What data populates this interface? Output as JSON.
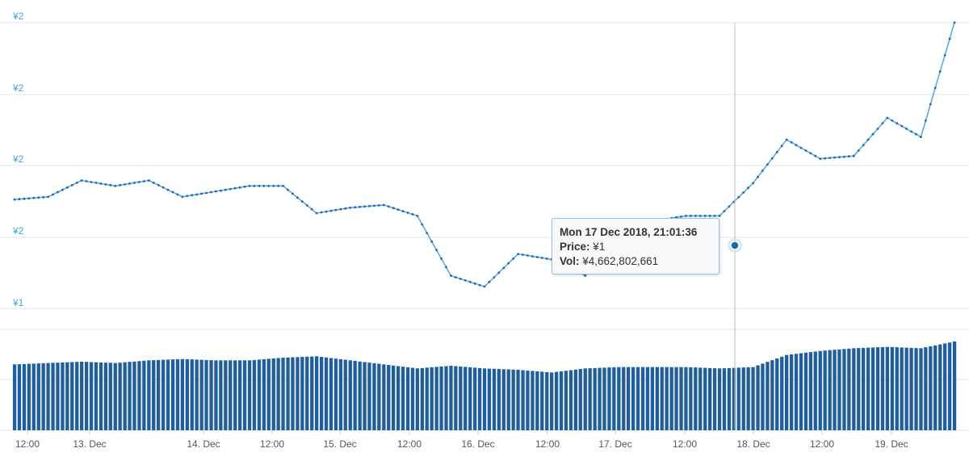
{
  "chart_data": {
    "type": "line",
    "title": "",
    "x": [
      "12 Dec 12:00",
      "12 Dec 18:00",
      "13 Dec 00:00",
      "13 Dec 06:00",
      "13 Dec 12:00",
      "13 Dec 18:00",
      "14 Dec 00:00",
      "14 Dec 06:00",
      "14 Dec 12:00",
      "14 Dec 18:00",
      "15 Dec 00:00",
      "15 Dec 06:00",
      "15 Dec 12:00",
      "15 Dec 18:00",
      "16 Dec 00:00",
      "16 Dec 06:00",
      "16 Dec 12:00",
      "16 Dec 18:00",
      "17 Dec 00:00",
      "17 Dec 06:00",
      "17 Dec 12:00",
      "17 Dec 18:00",
      "18 Dec 00:00",
      "18 Dec 06:00",
      "18 Dec 12:00",
      "18 Dec 18:00",
      "19 Dec 00:00",
      "19 Dec 06:00",
      "19 Dec 12:00"
    ],
    "series": [
      {
        "values": [
          1.9,
          1.91,
          1.97,
          1.95,
          1.97,
          1.91,
          1.93,
          1.95,
          1.95,
          1.85,
          1.87,
          1.88,
          1.84,
          1.62,
          1.58,
          1.7,
          1.68,
          1.62,
          1.75,
          1.82,
          1.84,
          1.84,
          1.96,
          2.12,
          2.05,
          2.06,
          2.2,
          2.13,
          2.55
        ]
      },
      {
        "name": "Vol",
        "values": [
          4.9,
          5.0,
          5.1,
          5.0,
          5.2,
          5.3,
          5.2,
          5.2,
          5.4,
          5.5,
          5.2,
          4.9,
          4.6,
          4.8,
          4.6,
          4.5,
          4.3,
          4.6,
          4.7,
          4.7,
          4.7,
          4.6,
          4.7,
          5.6,
          5.9,
          6.1,
          6.2,
          6.1,
          6.6
        ]
      }
    ],
    "x_tick_labels": [
      "12:00",
      "13. Dec",
      "14. Dec",
      "12:00",
      "15. Dec",
      "12:00",
      "16. Dec",
      "12:00",
      "17. Dec",
      "12:00",
      "18. Dec",
      "12:00",
      "19. Dec"
    ],
    "y_tick_labels": [
      "¥2",
      "¥2",
      "¥2",
      "¥2",
      "¥1"
    ],
    "grid": true,
    "line_color": "#5aaae6",
    "bar_color": "#1f5f9f"
  },
  "tooltip": {
    "date": "Mon 17 Dec 2018, 21:01:36",
    "price_label": "Price:",
    "price_value": "¥1",
    "vol_label": "Vol:",
    "vol_value": "¥4,662,802,661"
  }
}
